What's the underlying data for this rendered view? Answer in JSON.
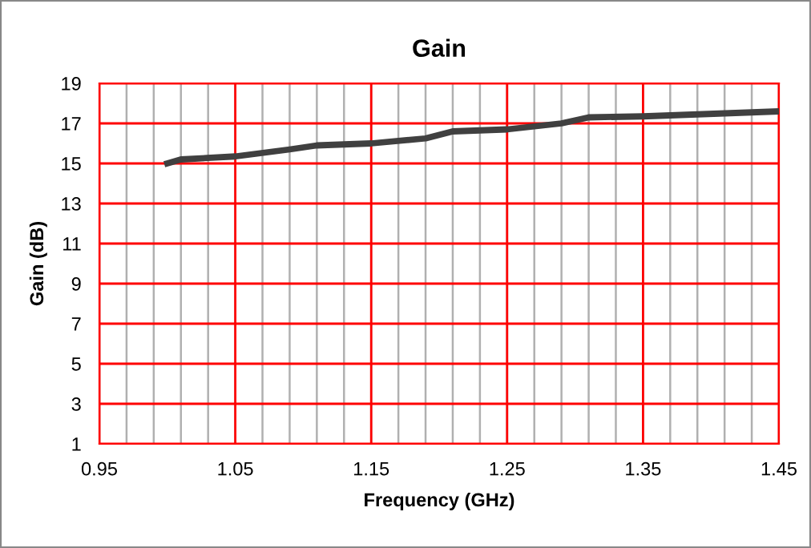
{
  "chart_data": {
    "type": "line",
    "title": "Gain",
    "xlabel": "Frequency (GHz)",
    "ylabel": "Gain (dB)",
    "x": [
      1.0,
      1.01,
      1.05,
      1.09,
      1.11,
      1.15,
      1.19,
      1.21,
      1.25,
      1.29,
      1.31,
      1.35,
      1.41,
      1.45
    ],
    "series": [
      {
        "color": "#404040",
        "values": [
          15.0,
          15.2,
          15.35,
          15.7,
          15.9,
          16.0,
          16.25,
          16.6,
          16.7,
          17.0,
          17.3,
          17.35,
          17.5,
          17.6
        ]
      }
    ],
    "xlim": [
      0.95,
      1.45
    ],
    "xticks": [
      {
        "value": 0.95,
        "label": "0.95"
      },
      {
        "value": 1.05,
        "label": "1.05"
      },
      {
        "value": 1.15,
        "label": "1.15"
      },
      {
        "value": 1.25,
        "label": "1.25"
      },
      {
        "value": 1.35,
        "label": "1.35"
      },
      {
        "value": 1.45,
        "label": "1.45"
      }
    ],
    "ylim": [
      1,
      19
    ],
    "yticks": [
      1,
      3,
      5,
      7,
      9,
      11,
      13,
      15,
      17,
      19
    ],
    "grid": true,
    "marker": "none",
    "line_style": "solid"
  }
}
